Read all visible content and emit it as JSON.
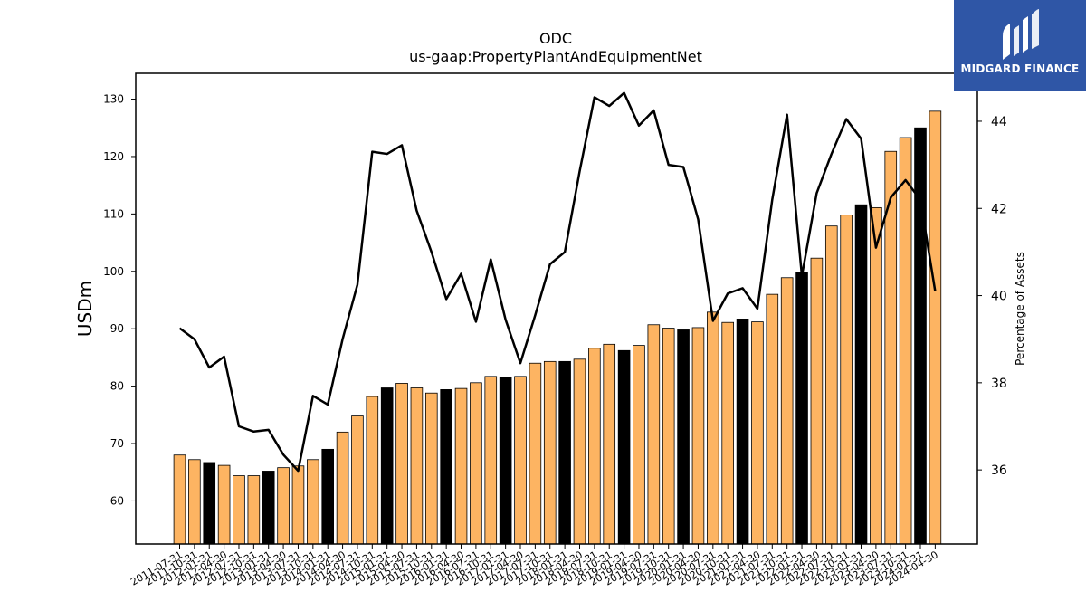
{
  "chart_data": {
    "type": "bar",
    "title": "ODC",
    "subtitle": "us-gaap:PropertyPlantAndEquipmentNet",
    "ylabel": "USDm",
    "y2label": "Percentage of Assets",
    "ylim": [
      52.5,
      134.5
    ],
    "y2lim": [
      34.3,
      45.1
    ],
    "yticks": [
      60,
      70,
      80,
      90,
      100,
      110,
      120,
      130
    ],
    "y2ticks": [
      36,
      38,
      40,
      42,
      44
    ],
    "colors": {
      "bar_default": "#fdb462",
      "bar_highlight": "#000000",
      "line": "#000000"
    },
    "categories": [
      "2011-07-31",
      "2011-10-31",
      "2012-01-31",
      "2012-04-30",
      "2012-07-31",
      "2012-10-31",
      "2013-01-31",
      "2013-04-30",
      "2013-07-31",
      "2013-10-31",
      "2014-01-31",
      "2014-04-30",
      "2014-07-31",
      "2014-10-31",
      "2015-01-31",
      "2015-04-30",
      "2015-07-31",
      "2015-10-31",
      "2016-01-31",
      "2016-04-30",
      "2016-07-31",
      "2016-10-31",
      "2017-01-31",
      "2017-04-30",
      "2017-07-31",
      "2017-10-31",
      "2018-01-31",
      "2018-04-30",
      "2018-07-31",
      "2018-10-31",
      "2019-01-31",
      "2019-04-30",
      "2019-07-31",
      "2019-10-31",
      "2020-01-31",
      "2020-04-30",
      "2020-07-31",
      "2020-10-31",
      "2021-01-31",
      "2021-04-30",
      "2021-07-31",
      "2021-10-31",
      "2022-01-31",
      "2022-04-30",
      "2022-07-31",
      "2022-10-31",
      "2023-01-31",
      "2023-04-30",
      "2023-07-31",
      "2023-10-31",
      "2024-01-31",
      "2024-04-30"
    ],
    "highlight": [
      false,
      false,
      true,
      false,
      false,
      false,
      true,
      false,
      false,
      false,
      true,
      false,
      false,
      false,
      true,
      false,
      false,
      false,
      true,
      false,
      false,
      false,
      true,
      false,
      false,
      false,
      true,
      false,
      false,
      false,
      true,
      false,
      false,
      false,
      true,
      false,
      false,
      false,
      true,
      false,
      false,
      false,
      true,
      false,
      false,
      false,
      true,
      false,
      false,
      false,
      true,
      false
    ],
    "series": [
      {
        "name": "PropertyPlantAndEquipmentNet",
        "kind": "bar",
        "axis": "left",
        "values": [
          68.0,
          67.2,
          66.7,
          66.2,
          64.4,
          64.4,
          65.2,
          65.8,
          66.1,
          67.2,
          69.0,
          72.0,
          74.8,
          78.2,
          79.7,
          80.5,
          79.7,
          78.8,
          79.4,
          79.6,
          80.6,
          81.7,
          81.5,
          81.7,
          84.0,
          84.3,
          84.3,
          84.7,
          86.6,
          87.3,
          86.2,
          87.1,
          90.7,
          90.1,
          89.8,
          90.2,
          92.9,
          91.1,
          91.7,
          91.2,
          96.0,
          98.9,
          99.9,
          102.3,
          107.9,
          109.8,
          111.6,
          111.1,
          120.9,
          123.3,
          125.0,
          127.9
        ]
      },
      {
        "name": "Percentage of Assets",
        "kind": "line",
        "axis": "right",
        "values": [
          39.25,
          39.0,
          38.35,
          38.6,
          37.0,
          36.88,
          36.92,
          36.35,
          35.98,
          37.7,
          37.5,
          39.0,
          40.25,
          43.3,
          43.25,
          43.45,
          41.95,
          41.0,
          39.92,
          40.5,
          39.4,
          40.83,
          39.45,
          38.45,
          39.55,
          40.72,
          41.0,
          42.85,
          44.55,
          44.35,
          44.65,
          43.9,
          44.25,
          43.0,
          42.95,
          41.75,
          39.42,
          40.05,
          40.17,
          39.7,
          42.2,
          44.15,
          40.45,
          42.35,
          43.25,
          44.05,
          43.6,
          41.1,
          42.25,
          42.65,
          42.2,
          40.1
        ]
      }
    ]
  },
  "logo": {
    "text": "MIDGARD FINANCE"
  }
}
